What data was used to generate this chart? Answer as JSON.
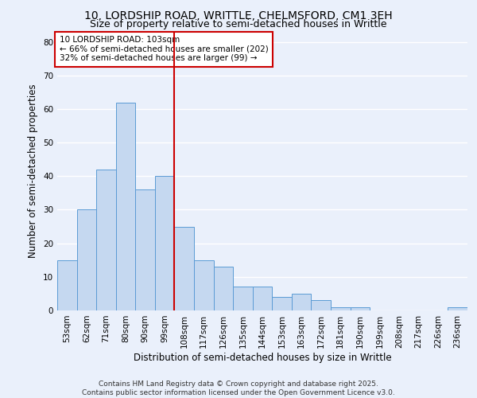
{
  "title": "10, LORDSHIP ROAD, WRITTLE, CHELMSFORD, CM1 3EH",
  "subtitle": "Size of property relative to semi-detached houses in Writtle",
  "xlabel": "Distribution of semi-detached houses by size in Writtle",
  "ylabel": "Number of semi-detached properties",
  "categories": [
    "53sqm",
    "62sqm",
    "71sqm",
    "80sqm",
    "90sqm",
    "99sqm",
    "108sqm",
    "117sqm",
    "126sqm",
    "135sqm",
    "144sqm",
    "153sqm",
    "163sqm",
    "172sqm",
    "181sqm",
    "190sqm",
    "199sqm",
    "208sqm",
    "217sqm",
    "226sqm",
    "236sqm"
  ],
  "values": [
    15,
    30,
    42,
    62,
    36,
    40,
    25,
    15,
    13,
    7,
    7,
    4,
    5,
    3,
    1,
    1,
    0,
    0,
    0,
    0,
    1
  ],
  "bar_color": "#c5d8f0",
  "bar_edge_color": "#5b9bd5",
  "background_color": "#eaf0fb",
  "grid_color": "#ffffff",
  "vline_x": 5.5,
  "vline_color": "#cc0000",
  "annotation_title": "10 LORDSHIP ROAD: 103sqm",
  "annotation_line1": "← 66% of semi-detached houses are smaller (202)",
  "annotation_line2": "32% of semi-detached houses are larger (99) →",
  "annotation_box_color": "#cc0000",
  "ylim": [
    0,
    83
  ],
  "yticks": [
    0,
    10,
    20,
    30,
    40,
    50,
    60,
    70,
    80
  ],
  "footer1": "Contains HM Land Registry data © Crown copyright and database right 2025.",
  "footer2": "Contains public sector information licensed under the Open Government Licence v3.0.",
  "title_fontsize": 10,
  "subtitle_fontsize": 9,
  "axis_label_fontsize": 8.5,
  "tick_fontsize": 7.5,
  "annotation_fontsize": 7.5,
  "footer_fontsize": 6.5
}
